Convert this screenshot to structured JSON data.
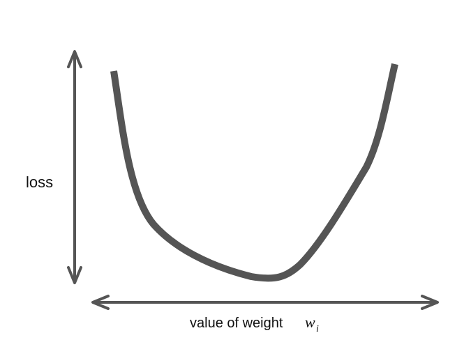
{
  "y_label": "loss",
  "x_label": "value of weight",
  "x_label_variable": "w",
  "x_label_subscript": "i"
}
